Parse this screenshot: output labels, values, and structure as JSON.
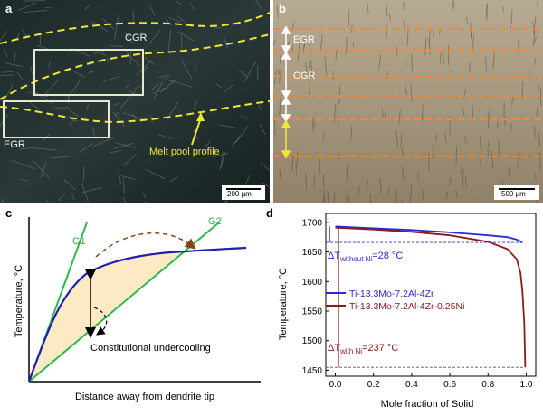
{
  "panel_a": {
    "letter": "a",
    "cgr_label": "CGR",
    "egr_label": "EGR",
    "melt_label": "Melt pool profile",
    "scale_label": "200 µm"
  },
  "panel_b": {
    "letter": "b",
    "egr_label": "EGR",
    "cgr_label": "CGR",
    "scale_label": "500 µm"
  },
  "panel_c": {
    "letter": "c",
    "g1_label": "G1",
    "g2_label": "G2",
    "ylabel": "Temperature, °C",
    "xlabel": "Distance away from dendrite tip",
    "annotation": "Constitutional undercooling",
    "colors": {
      "g": "#2db84d",
      "curve": "#1f1fb0",
      "fill": "#fde9c4",
      "arrow": "#8b4513"
    }
  },
  "panel_d": {
    "letter": "d",
    "ylabel": "Temperature, °C",
    "xlabel": "Mole fraction of Solid",
    "dt_without": {
      "prefix": "ΔT",
      "sub": "without Ni",
      "value": "=28 °C"
    },
    "dt_with": {
      "prefix": "ΔT",
      "sub": "with Ni",
      "value": "=237 °C"
    },
    "legend": [
      "Ti-13.3Mo-7.2Al-4Zr",
      "Ti-13.3Mo-7.2Al-4Zr-0.25Ni"
    ],
    "colors": {
      "blue": "#2b2bd6",
      "red": "#8b1a1a"
    }
  },
  "chart_data": {
    "type": "line",
    "xlabel": "Mole fraction of Solid",
    "ylabel": "Temperature, °C",
    "xlim": [
      -0.05,
      1.05
    ],
    "ylim": [
      1440,
      1715
    ],
    "xticks": [
      "0.0",
      "0.2",
      "0.4",
      "0.6",
      "0.8",
      "1.0"
    ],
    "yticks": [
      "1450",
      "1500",
      "1550",
      "1600",
      "1650",
      "1700"
    ],
    "legend_position": "center-right",
    "series": [
      {
        "name": "Ti-13.3Mo-7.2Al-4Zr",
        "color": "#2b2bd6",
        "x": [
          0.0,
          0.2,
          0.4,
          0.6,
          0.8,
          0.9,
          0.95,
          0.98
        ],
        "y": [
          1693,
          1690,
          1687,
          1683,
          1678,
          1675,
          1671,
          1666
        ]
      },
      {
        "name": "Ti-13.3Mo-7.2Al-4Zr-0.25Ni",
        "color": "#8b1a1a",
        "x": [
          0.0,
          0.2,
          0.4,
          0.6,
          0.8,
          0.9,
          0.95,
          0.97,
          0.98,
          0.99,
          0.995
        ],
        "y": [
          1691,
          1688,
          1684,
          1678,
          1667,
          1655,
          1638,
          1615,
          1585,
          1530,
          1455
        ]
      }
    ]
  }
}
